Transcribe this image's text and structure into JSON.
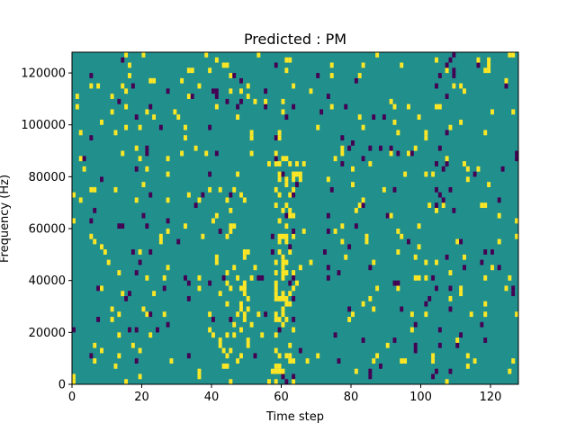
{
  "chart_data": {
    "type": "heatmap",
    "title": "Predicted : PM",
    "xlabel": "Time step",
    "ylabel": "Frequency (Hz)",
    "xlim": [
      0,
      128
    ],
    "ylim": [
      0,
      128000
    ],
    "xticks": [
      0,
      20,
      40,
      60,
      80,
      100,
      120
    ],
    "yticks": [
      0,
      20000,
      40000,
      60000,
      80000,
      100000,
      120000
    ],
    "n_time_steps": 128,
    "n_freq_bins": 64,
    "value_levels": {
      "low": -1,
      "mid": 0,
      "high": 1
    },
    "colors": {
      "low": "#440154",
      "mid": "#21908d",
      "high": "#fde725"
    },
    "seed": 12345,
    "background_value": 0,
    "grid": false,
    "legend": "none"
  }
}
